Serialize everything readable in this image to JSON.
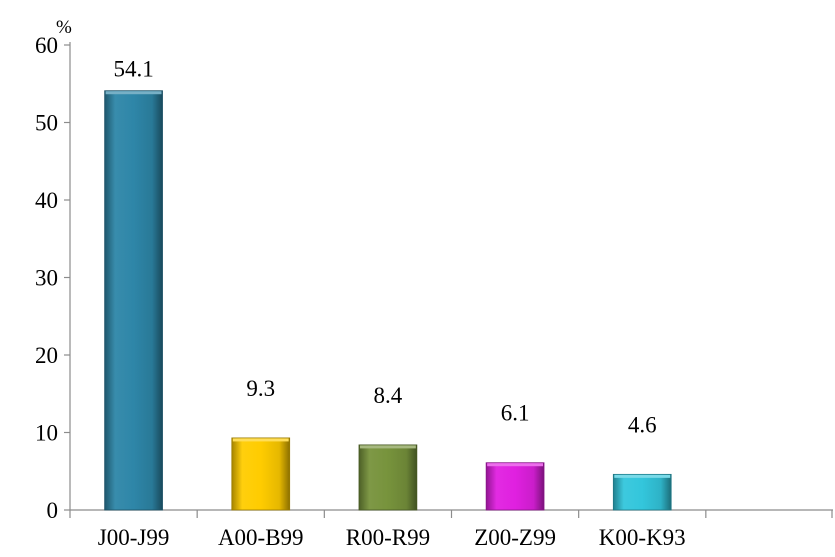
{
  "chart_data": {
    "type": "bar",
    "title": "",
    "xlabel": "",
    "ylabel": "%",
    "categories": [
      "J00-J99",
      "A00-B99",
      "R00-R99",
      "Z00-Z99",
      "K00-K93"
    ],
    "values": [
      54.1,
      9.3,
      8.4,
      6.1,
      4.6
    ],
    "value_labels": [
      "54.1",
      "9.3",
      "8.4",
      "6.1",
      "4.6"
    ],
    "y_ticks": [
      "0",
      "10",
      "20",
      "30",
      "40",
      "50",
      "60"
    ],
    "ylim": [
      0,
      60
    ],
    "x_slots": 6,
    "grid": false,
    "legend": "none",
    "colors": [
      "#2E86A8",
      "#FFCC00",
      "#77933C",
      "#E020E0",
      "#33C6DC"
    ]
  }
}
